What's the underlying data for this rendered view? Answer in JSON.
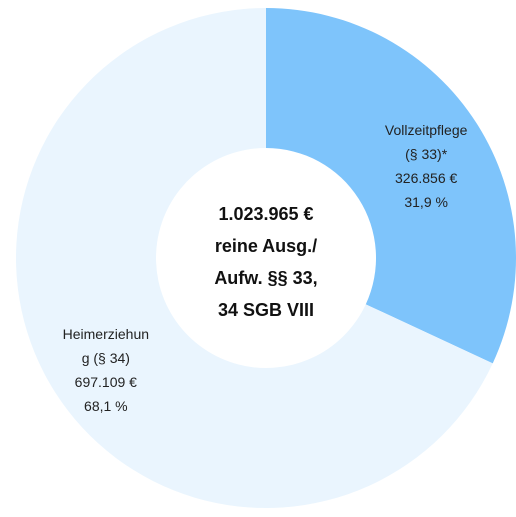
{
  "chart_data": {
    "type": "donut",
    "categories": [
      "Vollzeitpflege (§ 33)*",
      "Heimerziehung (§ 34)"
    ],
    "values": [
      326856,
      697109
    ],
    "value_labels": [
      "326.856 €",
      "697.109 €"
    ],
    "percent_labels": [
      "31,9 %",
      "68,1 %"
    ],
    "colors": [
      "#7ec4fb",
      "#eaf5fe"
    ],
    "center_label": [
      "1.023.965 €",
      "reine Ausg./",
      "Aufw. §§ 33,",
      "34 SGB VIII"
    ]
  }
}
